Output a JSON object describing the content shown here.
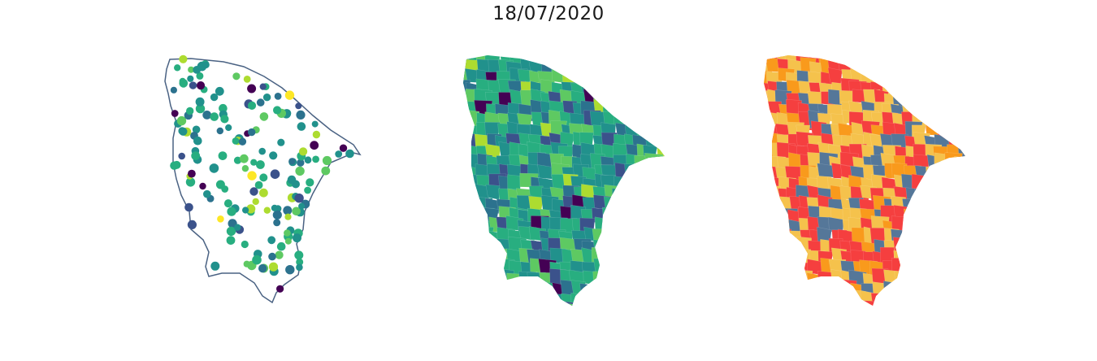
{
  "figure": {
    "title": "18/07/2020"
  },
  "maps": [
    {
      "id": "points",
      "kind": "point-map",
      "outline_color": "#4a6283",
      "palette": [
        "#440154",
        "#3b528b",
        "#2c728e",
        "#21918c",
        "#28ae80",
        "#5ec962",
        "#addc30",
        "#fde725"
      ]
    },
    {
      "id": "choropleth",
      "kind": "choropleth",
      "palette": [
        "#440154",
        "#3b528b",
        "#2c728e",
        "#21918c",
        "#28ae80",
        "#5ec962",
        "#addc30"
      ]
    },
    {
      "id": "classes",
      "kind": "categorical-choropleth",
      "colors": {
        "low": "#557799",
        "mid": "#f99a1c",
        "high": "#f5c24c",
        "critical": "#f53f3f"
      }
    }
  ]
}
